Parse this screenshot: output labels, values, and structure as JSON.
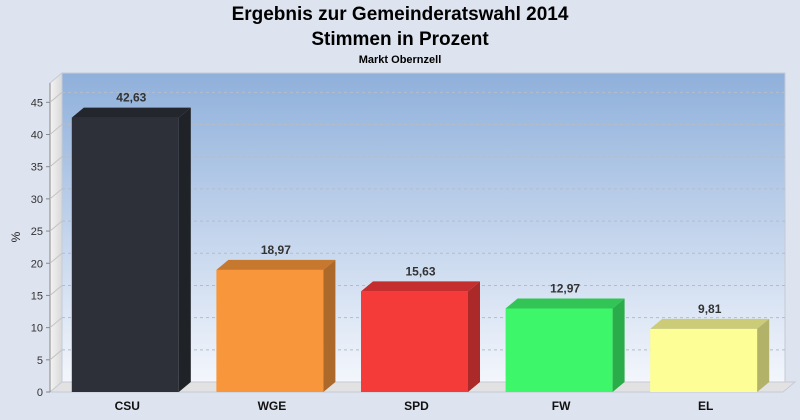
{
  "chart_data": {
    "type": "bar",
    "title": "Ergebnis zur Gemeinderatswahl 2014",
    "subtitle": "Stimmen in Prozent",
    "subtitle2": "Markt Obernzell",
    "categories": [
      "CSU",
      "WGE",
      "SPD",
      "FW",
      "EL"
    ],
    "values": [
      42.63,
      18.97,
      15.63,
      12.97,
      9.81
    ],
    "value_labels": [
      "42,63",
      "18,97",
      "15,63",
      "12,97",
      "9,81"
    ],
    "colors": [
      "#2d3038",
      "#f7963a",
      "#f53a3a",
      "#3ef66a",
      "#fefe96"
    ],
    "ylabel": "%",
    "xlabel": "",
    "ylim": [
      0,
      48
    ],
    "yticks": [
      0,
      5,
      10,
      15,
      20,
      25,
      30,
      35,
      40,
      45
    ],
    "grid": true,
    "legend": "none"
  }
}
